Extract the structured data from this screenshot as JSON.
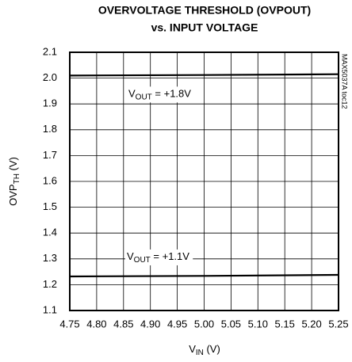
{
  "chart_data": {
    "type": "line",
    "title": [
      "OVERVOLTAGE THRESHOLD (OVPOUT)",
      "vs. INPUT VOLTAGE"
    ],
    "x_label": {
      "main": "V",
      "sub": "IN",
      "rest": " (V)"
    },
    "y_label": {
      "main": "OVP",
      "sub": "TH",
      "rest": " (V)"
    },
    "note": "MAX5037A toc12",
    "x": [
      4.75,
      5.0,
      5.25
    ],
    "series": [
      {
        "color": "#000000",
        "values": [
          2.01,
          2.012,
          2.015
        ],
        "label": {
          "main": "V",
          "sub": "OUT",
          "rest": " = +1.8V"
        }
      },
      {
        "color": "#000000",
        "values": [
          1.232,
          1.234,
          1.238
        ],
        "label": {
          "main": "V",
          "sub": "OUT",
          "rest": " = +1.1V"
        }
      }
    ],
    "xlim": [
      4.75,
      5.25
    ],
    "xticks": [
      4.75,
      {
        "value": 4.8,
        "label": "4.80"
      },
      4.85,
      {
        "value": 4.9,
        "label": "4.90"
      },
      4.95,
      {
        "value": 5.0,
        "label": "5.00"
      },
      5.05,
      {
        "value": 5.1,
        "label": "5.10"
      },
      5.15,
      {
        "value": 5.2,
        "label": "5.20"
      },
      5.25
    ],
    "ylim": [
      1.1,
      2.1
    ],
    "yticks": [
      1.1,
      1.2,
      1.3,
      1.4,
      1.5,
      1.6,
      1.7,
      1.8,
      1.9,
      {
        "value": 2.0,
        "label": "2.0"
      },
      2.1
    ],
    "grid": true
  }
}
